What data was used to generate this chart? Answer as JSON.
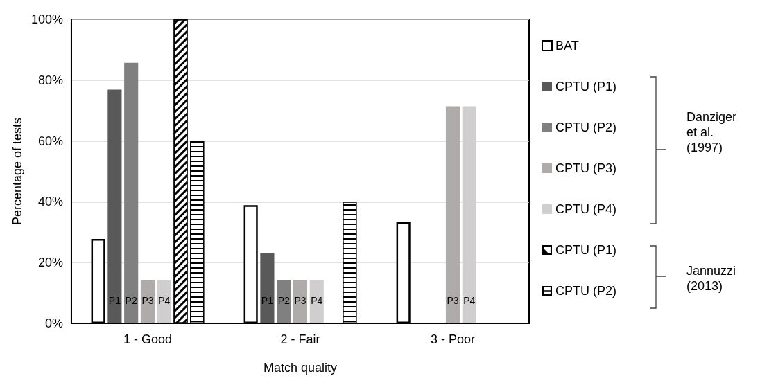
{
  "chart_data": {
    "type": "bar",
    "xlabel": "Match quality",
    "ylabel": "Percentage of tests",
    "categories": [
      "1 - Good",
      "2 - Fair",
      "3 - Poor"
    ],
    "series": [
      {
        "name": "BAT",
        "color": "#ffffff",
        "values": [
          27.8,
          38.9,
          33.3
        ]
      },
      {
        "name": "CPTU (P1)",
        "color": "#595959",
        "values": [
          76.9,
          23.1,
          0
        ],
        "value_labels": [
          "P1",
          "P1",
          null
        ]
      },
      {
        "name": "CPTU (P2)",
        "color": "#808080",
        "values": [
          85.7,
          14.3,
          0
        ],
        "value_labels": [
          "P2",
          "P2",
          null
        ]
      },
      {
        "name": "CPTU (P3)",
        "color": "#afabab",
        "values": [
          14.3,
          14.3,
          71.4
        ],
        "value_labels": [
          "P3",
          "P3",
          "P3"
        ]
      },
      {
        "name": "CPTU (P4)",
        "color": "#d0cece",
        "values": [
          14.3,
          14.3,
          71.4
        ],
        "value_labels": [
          "P4",
          "P4",
          "P4"
        ]
      },
      {
        "name": "CPTU (P1)",
        "color": "#000000",
        "values": [
          100,
          0,
          0
        ]
      },
      {
        "name": "CPTU (P2)",
        "color": "#000000",
        "values": [
          60,
          40,
          0
        ]
      }
    ],
    "annotations": [
      "Danziger et al. (1997)",
      "Jannuzzi (2013)"
    ],
    "ylim": [
      0,
      100
    ],
    "yticks": [
      {
        "value": 0,
        "label": "0%"
      },
      {
        "value": 20,
        "label": "20%"
      },
      {
        "value": 40,
        "label": "40%"
      },
      {
        "value": 60,
        "label": "60%"
      },
      {
        "value": 80,
        "label": "80%"
      },
      {
        "value": 100,
        "label": "100%"
      }
    ],
    "grid": "y",
    "legend": "right"
  }
}
